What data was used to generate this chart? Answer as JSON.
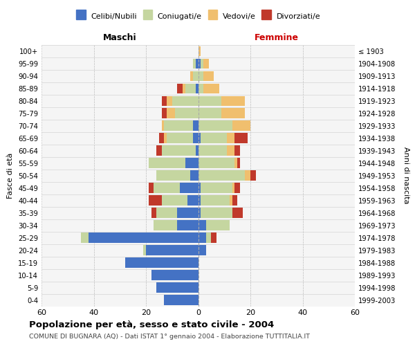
{
  "age_groups": [
    "0-4",
    "5-9",
    "10-14",
    "15-19",
    "20-24",
    "25-29",
    "30-34",
    "35-39",
    "40-44",
    "45-49",
    "50-54",
    "55-59",
    "60-64",
    "65-69",
    "70-74",
    "75-79",
    "80-84",
    "85-89",
    "90-94",
    "95-99",
    "100+"
  ],
  "birth_years": [
    "1999-2003",
    "1994-1998",
    "1989-1993",
    "1984-1988",
    "1979-1983",
    "1974-1978",
    "1969-1973",
    "1964-1968",
    "1959-1963",
    "1954-1958",
    "1949-1953",
    "1944-1948",
    "1939-1943",
    "1934-1938",
    "1929-1933",
    "1924-1928",
    "1919-1923",
    "1914-1918",
    "1909-1913",
    "1904-1908",
    "≤ 1903"
  ],
  "males": {
    "celibe": [
      13,
      16,
      18,
      28,
      20,
      42,
      8,
      8,
      4,
      7,
      3,
      5,
      1,
      2,
      2,
      0,
      0,
      1,
      0,
      1,
      0
    ],
    "coniugato": [
      0,
      0,
      0,
      0,
      1,
      3,
      9,
      8,
      10,
      10,
      13,
      14,
      13,
      10,
      11,
      9,
      10,
      4,
      2,
      1,
      0
    ],
    "vedovo": [
      0,
      0,
      0,
      0,
      0,
      0,
      0,
      0,
      0,
      0,
      0,
      0,
      0,
      1,
      1,
      3,
      2,
      1,
      1,
      0,
      0
    ],
    "divorziato": [
      0,
      0,
      0,
      0,
      0,
      0,
      0,
      2,
      5,
      2,
      0,
      0,
      2,
      2,
      0,
      2,
      2,
      2,
      0,
      0,
      0
    ]
  },
  "females": {
    "nubile": [
      0,
      0,
      0,
      0,
      3,
      3,
      3,
      1,
      1,
      1,
      0,
      0,
      0,
      1,
      0,
      0,
      0,
      0,
      0,
      1,
      0
    ],
    "coniugata": [
      0,
      0,
      0,
      0,
      0,
      2,
      9,
      12,
      11,
      12,
      18,
      14,
      11,
      10,
      13,
      9,
      9,
      2,
      2,
      1,
      0
    ],
    "vedova": [
      0,
      0,
      0,
      0,
      0,
      0,
      0,
      0,
      1,
      1,
      2,
      1,
      3,
      3,
      7,
      9,
      9,
      6,
      4,
      2,
      1
    ],
    "divorziata": [
      0,
      0,
      0,
      0,
      0,
      2,
      0,
      4,
      2,
      2,
      2,
      1,
      2,
      5,
      0,
      0,
      0,
      0,
      0,
      0,
      0
    ]
  },
  "colors": {
    "celibe": "#4472c4",
    "coniugato": "#c5d6a0",
    "vedovo": "#f0bf6e",
    "divorziato": "#c0392b"
  },
  "title": "Popolazione per età, sesso e stato civile - 2004",
  "subtitle": "COMUNE DI BUGNARA (AQ) - Dati ISTAT 1° gennaio 2004 - Elaborazione TUTTITALIA.IT",
  "xlabel_left": "Maschi",
  "xlabel_right": "Femmine",
  "ylabel_left": "Fasce di età",
  "ylabel_right": "Anni di nascita",
  "xlim": 60,
  "legend_labels": [
    "Celibi/Nubili",
    "Coniugati/e",
    "Vedovi/e",
    "Divorziati/e"
  ],
  "bg_color": "#f5f5f5",
  "grid_color": "#cccccc"
}
